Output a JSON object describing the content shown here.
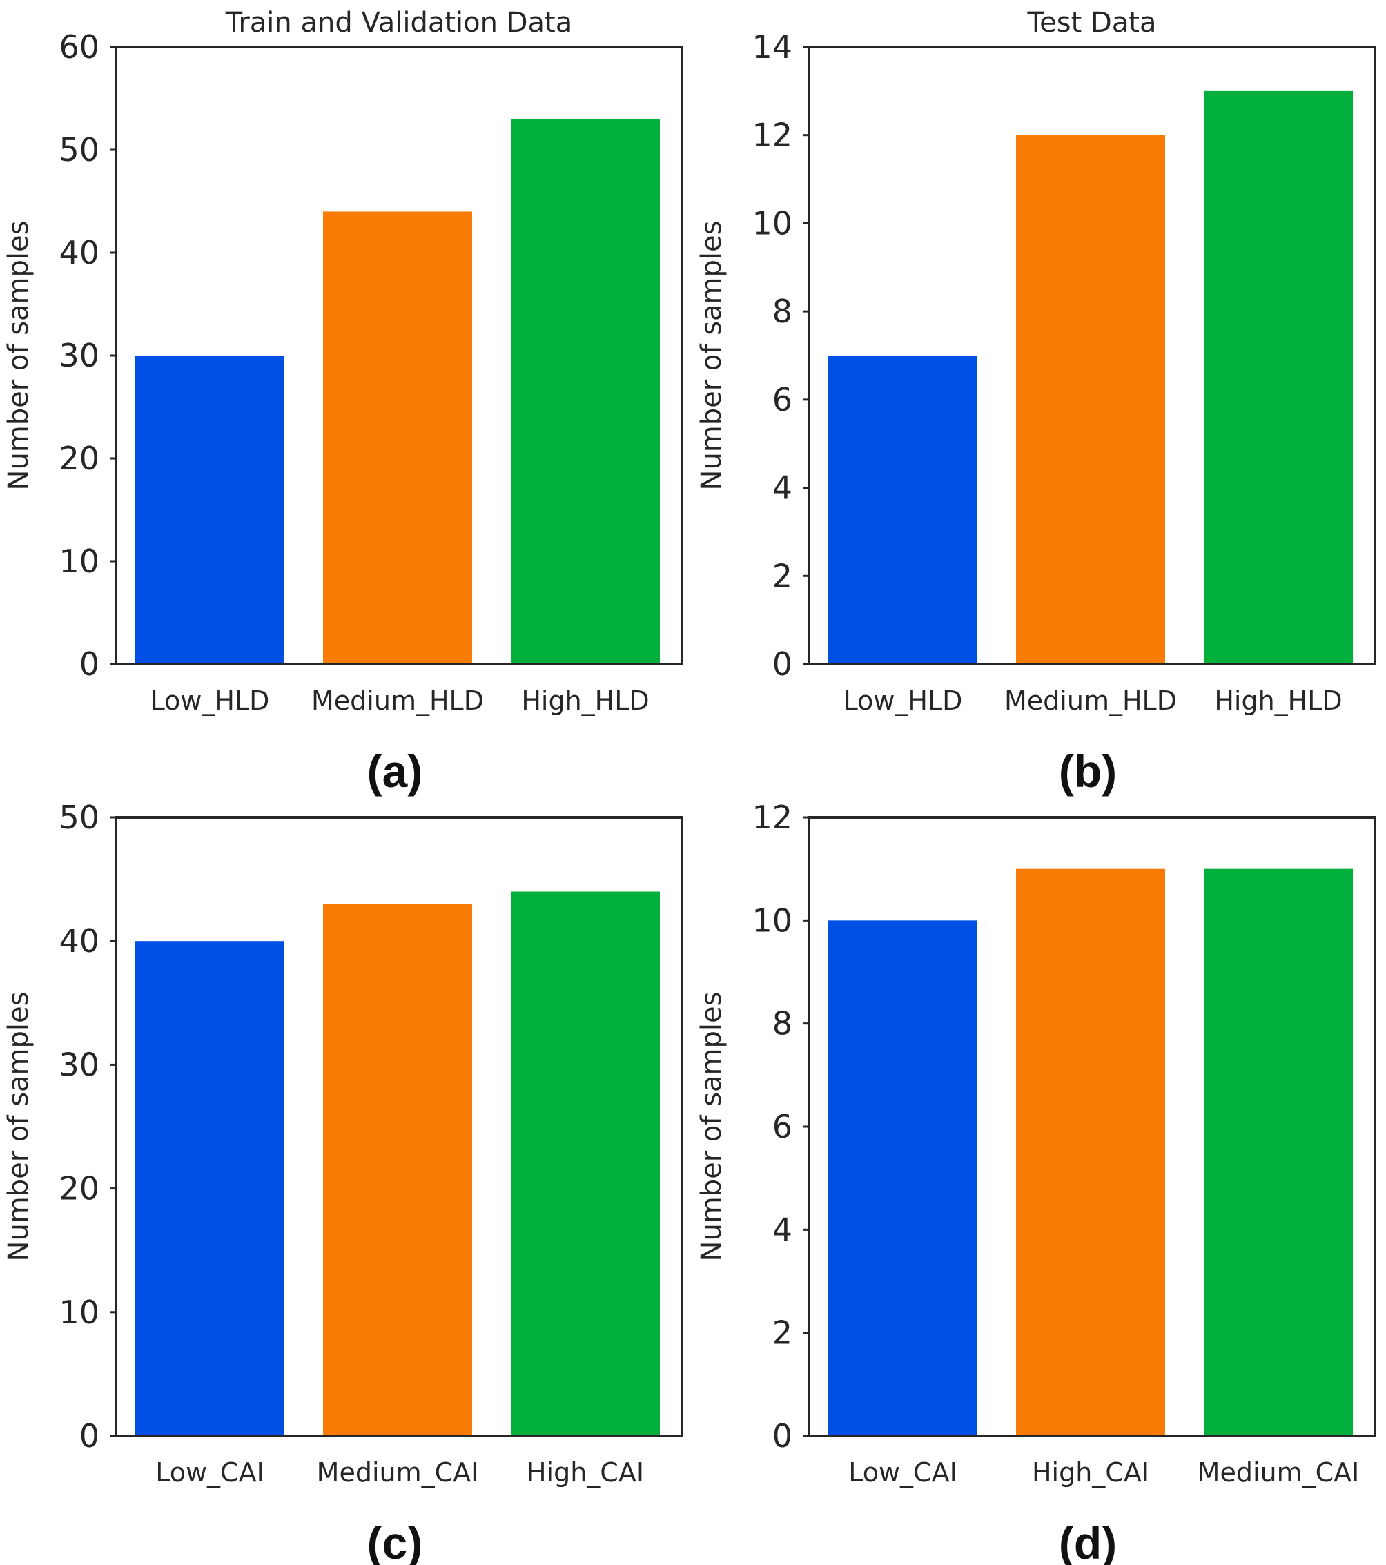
{
  "chart_data": [
    {
      "type": "bar",
      "panel_label": "(a)",
      "title": "Train and Validation Data",
      "ylabel": "Number of samples",
      "xlabel": "",
      "categories": [
        "Low_HLD",
        "Medium_HLD",
        "High_HLD"
      ],
      "values": [
        30,
        44,
        53
      ],
      "colors": [
        "#0050e6",
        "#f97c06",
        "#00b03a"
      ],
      "ylim": [
        0,
        60
      ],
      "yticks": [
        0,
        10,
        20,
        30,
        40,
        50,
        60
      ],
      "grid": false
    },
    {
      "type": "bar",
      "panel_label": "(b)",
      "title": "Test Data",
      "ylabel": "Number of samples",
      "xlabel": "",
      "categories": [
        "Low_HLD",
        "Medium_HLD",
        "High_HLD"
      ],
      "values": [
        7,
        12,
        13
      ],
      "colors": [
        "#0050e6",
        "#f97c06",
        "#00b03a"
      ],
      "ylim": [
        0,
        14
      ],
      "yticks": [
        0,
        2,
        4,
        6,
        8,
        10,
        12,
        14
      ],
      "grid": false
    },
    {
      "type": "bar",
      "panel_label": "(c)",
      "title": "",
      "ylabel": "Number of samples",
      "xlabel": "",
      "categories": [
        "Low_CAI",
        "Medium_CAI",
        "High_CAI"
      ],
      "values": [
        40,
        43,
        44
      ],
      "colors": [
        "#0050e6",
        "#f97c06",
        "#00b03a"
      ],
      "ylim": [
        0,
        50
      ],
      "yticks": [
        0,
        10,
        20,
        30,
        40,
        50
      ],
      "grid": false
    },
    {
      "type": "bar",
      "panel_label": "(d)",
      "title": "",
      "ylabel": "Number of samples",
      "xlabel": "",
      "categories": [
        "Low_CAI",
        "High_CAI",
        "Medium_CAI"
      ],
      "values": [
        10,
        11,
        11
      ],
      "colors": [
        "#0050e6",
        "#f97c06",
        "#00b03a"
      ],
      "ylim": [
        0,
        12
      ],
      "yticks": [
        0,
        2,
        4,
        6,
        8,
        10,
        12
      ],
      "grid": false
    }
  ]
}
